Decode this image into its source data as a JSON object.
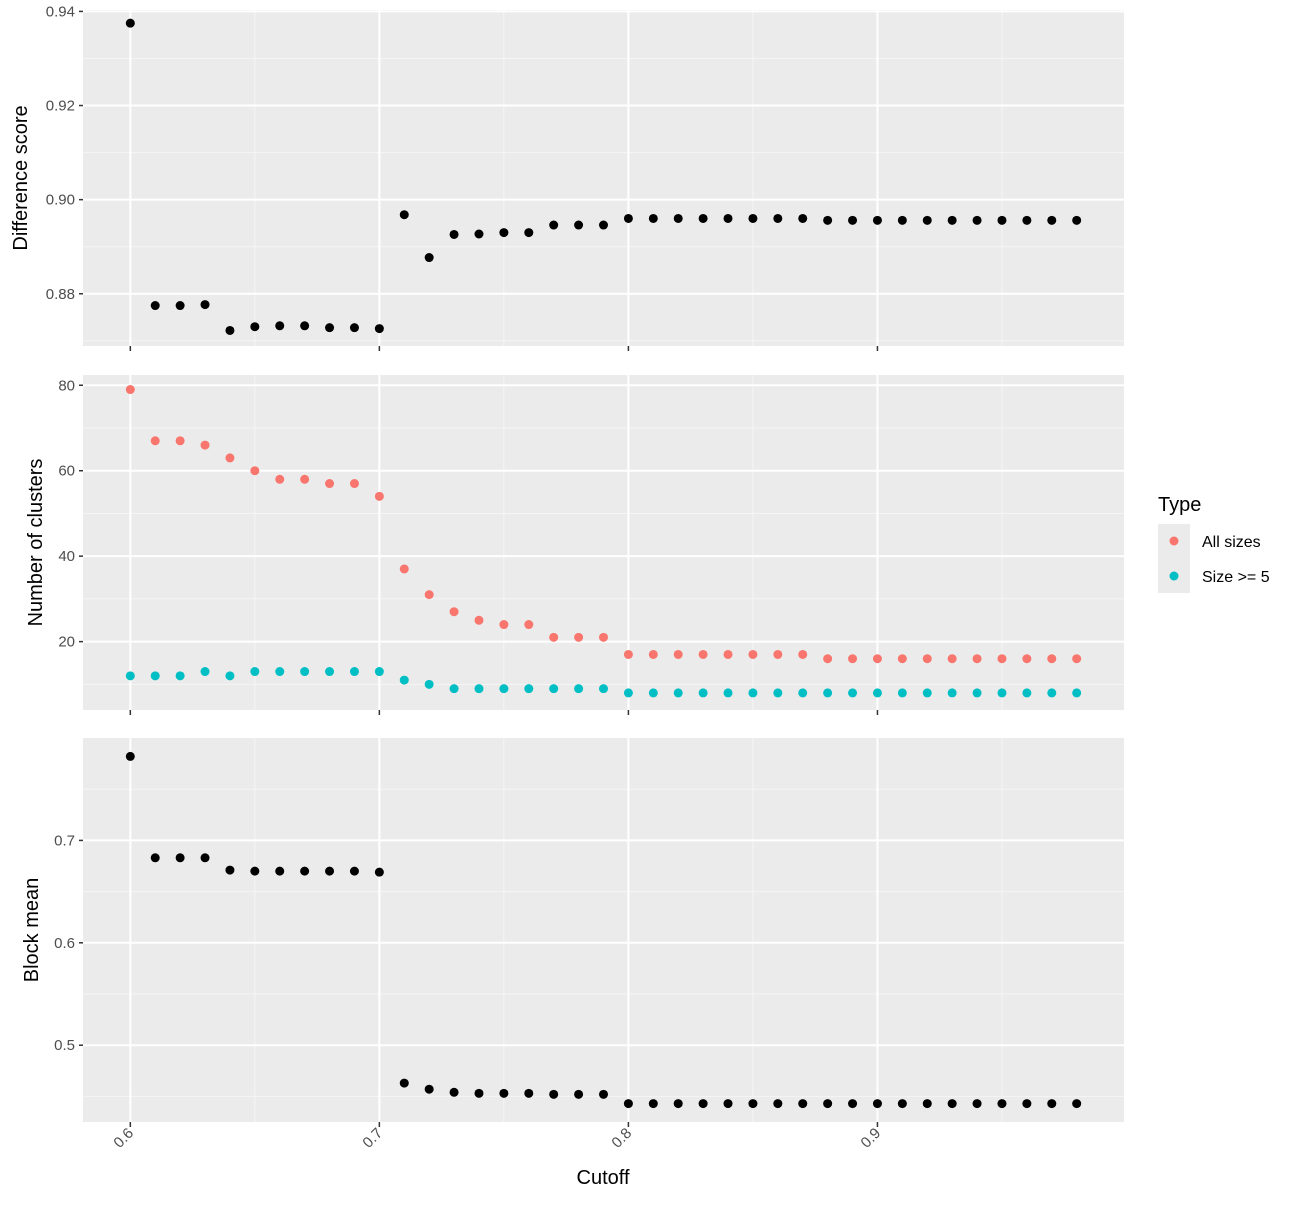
{
  "colors": {
    "panel_bg": "#EBEBEB",
    "grid_major": "#FFFFFF",
    "grid_minor": "#F5F5F5",
    "tick_text": "#4D4D4D",
    "point_default": "#000000",
    "series_all_sizes": "#F8766D",
    "series_size_ge5": "#00BFC4",
    "legend_key_bg": "#EBEBEB"
  },
  "legend": {
    "title": "Type",
    "items": [
      {
        "label": "All sizes",
        "color": "#F8766D"
      },
      {
        "label": "Size >= 5",
        "color": "#00BFC4"
      }
    ]
  },
  "chart_data": [
    {
      "type": "scatter",
      "panel": "Difference score",
      "xlabel": "Cutoff",
      "ylabel": "Difference score",
      "xlim": [
        0.581,
        0.999
      ],
      "ylim": [
        0.8689,
        0.9403
      ],
      "xticks": [
        "0.6",
        "0.7",
        "0.8",
        "0.9"
      ],
      "xtick_values": [
        0.6,
        0.7,
        0.8,
        0.9
      ],
      "yticks": [
        "0.88",
        "0.90",
        "0.92",
        "0.94"
      ],
      "ytick_values": [
        0.88,
        0.9,
        0.92,
        0.94
      ],
      "grid": true,
      "x": [
        0.6,
        0.61,
        0.62,
        0.63,
        0.64,
        0.65,
        0.66,
        0.67,
        0.68,
        0.69,
        0.7,
        0.71,
        0.72,
        0.73,
        0.74,
        0.75,
        0.76,
        0.77,
        0.78,
        0.79,
        0.8,
        0.81,
        0.82,
        0.83,
        0.84,
        0.85,
        0.86,
        0.87,
        0.88,
        0.89,
        0.9,
        0.91,
        0.92,
        0.93,
        0.94,
        0.95,
        0.96,
        0.97,
        0.98
      ],
      "series": [
        {
          "values": [
            0.9375,
            0.8775,
            0.8775,
            0.8777,
            0.8722,
            0.873,
            0.8732,
            0.8732,
            0.8728,
            0.8728,
            0.8726,
            0.8968,
            0.8877,
            0.8926,
            0.8927,
            0.893,
            0.893,
            0.8946,
            0.8946,
            0.8946,
            0.896,
            0.896,
            0.896,
            0.896,
            0.896,
            0.896,
            0.896,
            0.896,
            0.8956,
            0.8956,
            0.8956,
            0.8956,
            0.8956,
            0.8956,
            0.8956,
            0.8956,
            0.8956,
            0.8956,
            0.8956
          ]
        }
      ]
    },
    {
      "type": "scatter",
      "panel": "Number of clusters",
      "xlabel": "Cutoff",
      "ylabel": "Number of clusters",
      "xlim": [
        0.581,
        0.999
      ],
      "ylim": [
        4.0,
        82.4
      ],
      "xticks": [
        "0.6",
        "0.7",
        "0.8",
        "0.9"
      ],
      "xtick_values": [
        0.6,
        0.7,
        0.8,
        0.9
      ],
      "yticks": [
        "20",
        "40",
        "60",
        "80"
      ],
      "ytick_values": [
        20,
        40,
        60,
        80
      ],
      "grid": true,
      "legend_position": "right",
      "x": [
        0.6,
        0.61,
        0.62,
        0.63,
        0.64,
        0.65,
        0.66,
        0.67,
        0.68,
        0.69,
        0.7,
        0.71,
        0.72,
        0.73,
        0.74,
        0.75,
        0.76,
        0.77,
        0.78,
        0.79,
        0.8,
        0.81,
        0.82,
        0.83,
        0.84,
        0.85,
        0.86,
        0.87,
        0.88,
        0.89,
        0.9,
        0.91,
        0.92,
        0.93,
        0.94,
        0.95,
        0.96,
        0.97,
        0.98
      ],
      "series": [
        {
          "name": "All sizes",
          "values": [
            79,
            67,
            67,
            66,
            63,
            60,
            58,
            58,
            57,
            57,
            54,
            37,
            31,
            27,
            25,
            24,
            24,
            21,
            21,
            21,
            17,
            17,
            17,
            17,
            17,
            17,
            17,
            17,
            16,
            16,
            16,
            16,
            16,
            16,
            16,
            16,
            16,
            16,
            16
          ]
        },
        {
          "name": "Size >= 5",
          "values": [
            12,
            12,
            12,
            13,
            12,
            13,
            13,
            13,
            13,
            13,
            13,
            11,
            10,
            9,
            9,
            9,
            9,
            9,
            9,
            9,
            8,
            8,
            8,
            8,
            8,
            8,
            8,
            8,
            8,
            8,
            8,
            8,
            8,
            8,
            8,
            8,
            8,
            8,
            8
          ]
        }
      ]
    },
    {
      "type": "scatter",
      "panel": "Block mean",
      "xlabel": "Cutoff",
      "ylabel": "Block mean",
      "xlim": [
        0.581,
        0.999
      ],
      "ylim": [
        0.425,
        0.8
      ],
      "xticks": [
        "0.6",
        "0.7",
        "0.8",
        "0.9"
      ],
      "xtick_values": [
        0.6,
        0.7,
        0.8,
        0.9
      ],
      "yticks": [
        "0.5",
        "0.6",
        "0.7"
      ],
      "ytick_values": [
        0.5,
        0.6,
        0.7
      ],
      "grid": true,
      "x": [
        0.6,
        0.61,
        0.62,
        0.63,
        0.64,
        0.65,
        0.66,
        0.67,
        0.68,
        0.69,
        0.7,
        0.71,
        0.72,
        0.73,
        0.74,
        0.75,
        0.76,
        0.77,
        0.78,
        0.79,
        0.8,
        0.81,
        0.82,
        0.83,
        0.84,
        0.85,
        0.86,
        0.87,
        0.88,
        0.89,
        0.9,
        0.91,
        0.92,
        0.93,
        0.94,
        0.95,
        0.96,
        0.97,
        0.98
      ],
      "series": [
        {
          "values": [
            0.782,
            0.683,
            0.683,
            0.683,
            0.671,
            0.67,
            0.67,
            0.67,
            0.67,
            0.67,
            0.669,
            0.463,
            0.457,
            0.454,
            0.453,
            0.453,
            0.453,
            0.452,
            0.452,
            0.452,
            0.443,
            0.443,
            0.443,
            0.443,
            0.443,
            0.443,
            0.443,
            0.443,
            0.443,
            0.443,
            0.443,
            0.443,
            0.443,
            0.443,
            0.443,
            0.443,
            0.443,
            0.443,
            0.443
          ]
        }
      ]
    }
  ],
  "x_axis_title": "Cutoff"
}
